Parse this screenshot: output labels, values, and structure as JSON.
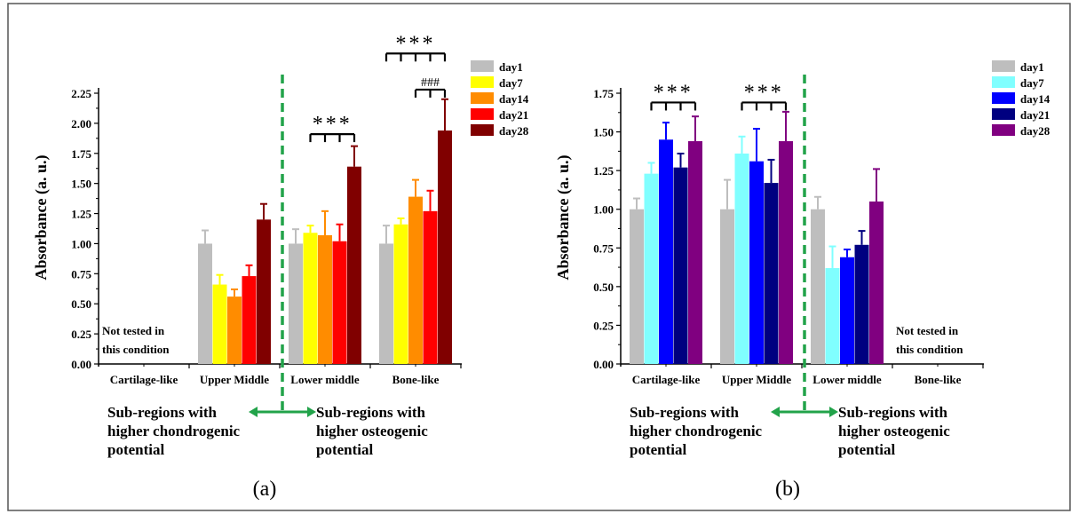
{
  "chart_data": [
    {
      "type": "bar",
      "panel_label": "(a)",
      "ylabel": "Absorbance (a. u.)",
      "ylim": [
        0,
        2.25
      ],
      "yticks": [
        "0.00",
        "0.25",
        "0.50",
        "0.75",
        "1.00",
        "1.25",
        "1.50",
        "1.75",
        "2.00",
        "2.25"
      ],
      "categories": [
        "Cartilage-like",
        "Upper Middle",
        "Lower middle",
        "Bone-like"
      ],
      "legend_position": "top-right",
      "series": [
        {
          "name": "day1",
          "color": "#bebebe",
          "values": [
            null,
            1.0,
            1.0,
            1.0
          ],
          "errors": [
            null,
            0.11,
            0.12,
            0.15
          ]
        },
        {
          "name": "day7",
          "color": "#ffff00",
          "values": [
            null,
            0.66,
            1.09,
            1.16
          ],
          "errors": [
            null,
            0.08,
            0.06,
            0.05
          ]
        },
        {
          "name": "day14",
          "color": "#ff8c00",
          "values": [
            null,
            0.56,
            1.07,
            1.39
          ],
          "errors": [
            null,
            0.06,
            0.2,
            0.14
          ]
        },
        {
          "name": "day21",
          "color": "#ff0000",
          "values": [
            null,
            0.73,
            1.02,
            1.27
          ],
          "errors": [
            null,
            0.09,
            0.14,
            0.17
          ]
        },
        {
          "name": "day28",
          "color": "#800000",
          "values": [
            null,
            1.2,
            1.64,
            1.94
          ],
          "errors": [
            null,
            0.13,
            0.17,
            0.26
          ]
        }
      ],
      "not_tested": {
        "category_index": 0,
        "line1": "Not  tested  in",
        "line2": "this condition"
      },
      "significance": [
        {
          "label": "***",
          "category_index": 2,
          "from_series": 1,
          "to_series": 4,
          "level": 1.91
        },
        {
          "label": "***",
          "category_index": 3,
          "from_series": 0,
          "to_series": 4,
          "level": 2.58
        },
        {
          "label": "###",
          "category_index": 3,
          "from_series": 2,
          "to_series": 4,
          "level": 2.28
        }
      ],
      "divider_after_category": 1,
      "annotation_left": [
        "Sub-regions with",
        "higher chondrogenic",
        "potential"
      ],
      "annotation_right": [
        "Sub-regions with",
        "higher osteogenic",
        "potential"
      ]
    },
    {
      "type": "bar",
      "panel_label": "(b)",
      "ylabel": "Absorbance (a. u.)",
      "ylim": [
        0,
        1.75
      ],
      "yticks": [
        "0.00",
        "0.25",
        "0.50",
        "0.75",
        "1.00",
        "1.25",
        "1.50",
        "1.75"
      ],
      "categories": [
        "Cartilage-like",
        "Upper Middle",
        "Lower middle",
        "Bone-like"
      ],
      "legend_position": "top-right",
      "series": [
        {
          "name": "day1",
          "color": "#bebebe",
          "values": [
            1.0,
            1.0,
            1.0,
            null
          ],
          "errors": [
            0.07,
            0.19,
            0.08,
            null
          ]
        },
        {
          "name": "day7",
          "color": "#80ffff",
          "values": [
            1.23,
            1.36,
            0.62,
            null
          ],
          "errors": [
            0.07,
            0.11,
            0.14,
            null
          ]
        },
        {
          "name": "day14",
          "color": "#0000ff",
          "values": [
            1.45,
            1.31,
            0.69,
            null
          ],
          "errors": [
            0.11,
            0.21,
            0.05,
            null
          ]
        },
        {
          "name": "day21",
          "color": "#000080",
          "values": [
            1.27,
            1.17,
            0.77,
            null
          ],
          "errors": [
            0.09,
            0.15,
            0.09,
            null
          ]
        },
        {
          "name": "day28",
          "color": "#800080",
          "values": [
            1.44,
            1.44,
            1.05,
            null
          ],
          "errors": [
            0.16,
            0.19,
            0.21,
            null
          ]
        }
      ],
      "not_tested": {
        "category_index": 3,
        "line1": "Not  tested  in",
        "line2": "this condition"
      },
      "significance": [
        {
          "label": "***",
          "category_index": 0,
          "from_series": 1,
          "to_series": 4,
          "level": 1.69
        },
        {
          "label": "***",
          "category_index": 1,
          "from_series": 1,
          "to_series": 4,
          "level": 1.69
        }
      ],
      "divider_after_category": 1,
      "annotation_left": [
        "Sub-regions with",
        "higher chondrogenic",
        "potential"
      ],
      "annotation_right": [
        "Sub-regions with",
        "higher osteogenic",
        "potential"
      ]
    }
  ]
}
